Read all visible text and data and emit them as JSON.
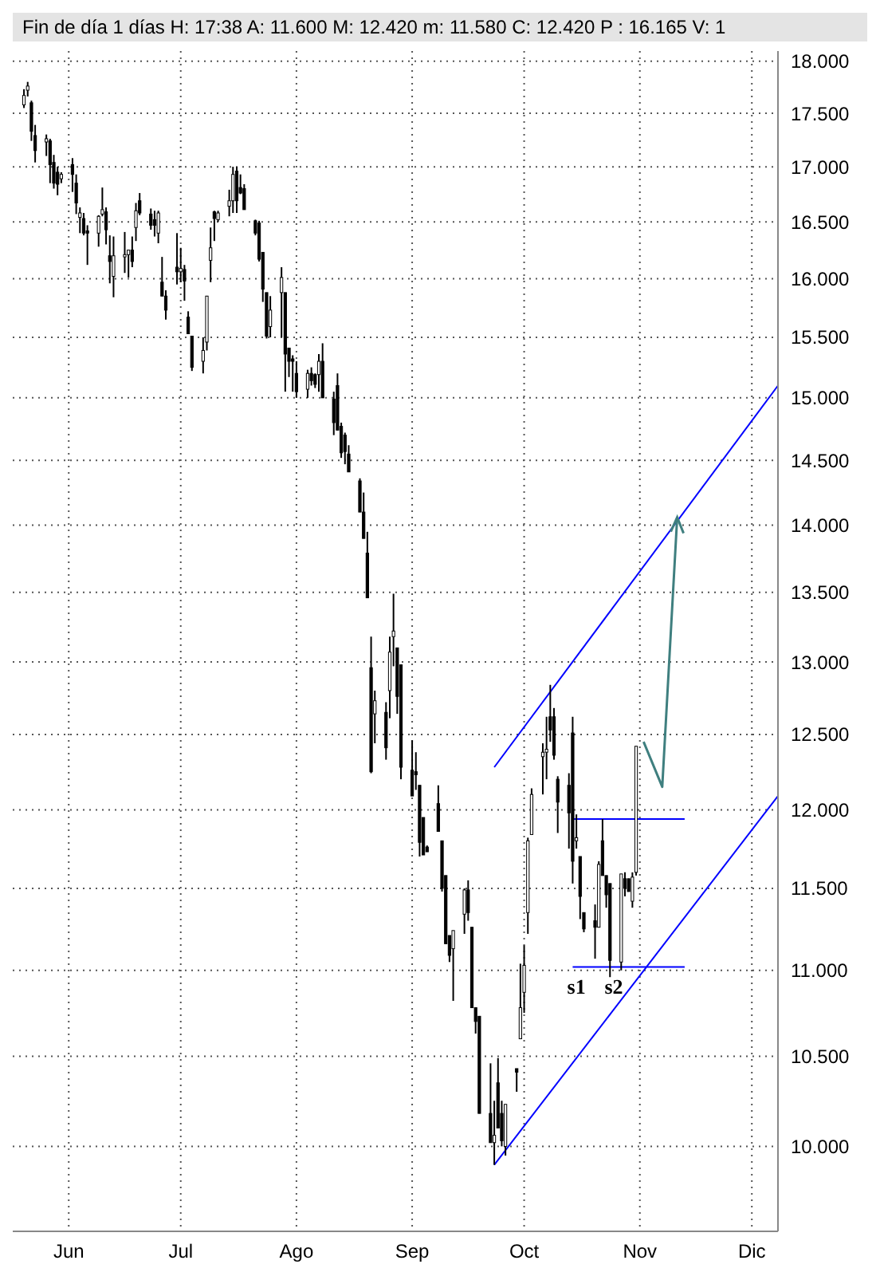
{
  "chart_data": {
    "type": "candlestick",
    "title": "Fin de día 1 días H: 17:38 A: 11.600 M: 12.420 m: 11.580 C: 12.420 P : 16.165 V: 1",
    "log": true,
    "grid": true,
    "xlim": [
      "--05-17",
      "--12-08"
    ],
    "xticks": [
      {
        "value": "--06-01",
        "label": "Jun"
      },
      {
        "value": "--07-01",
        "label": "Jul"
      },
      {
        "value": "--08-01",
        "label": "Ago"
      },
      {
        "value": "--09-01",
        "label": "Sep"
      },
      {
        "value": "--10-01",
        "label": "Oct"
      },
      {
        "value": "--11-01",
        "label": "Nov"
      },
      {
        "value": "--12-01",
        "label": "Dic"
      }
    ],
    "ylim": [
      9.55,
      18.1
    ],
    "yticks": [
      {
        "value": 10,
        "label": "10.000"
      },
      {
        "value": 10.5,
        "label": "10.500"
      },
      {
        "value": 11,
        "label": "11.000"
      },
      {
        "value": 11.5,
        "label": "11.500"
      },
      {
        "value": 12,
        "label": "12.000"
      },
      {
        "value": 12.5,
        "label": "12.500"
      },
      {
        "value": 13,
        "label": "13.000"
      },
      {
        "value": 13.5,
        "label": "13.500"
      },
      {
        "value": 14,
        "label": "14.000"
      },
      {
        "value": 14.5,
        "label": "14.500"
      },
      {
        "value": 15,
        "label": "15.000"
      },
      {
        "value": 15.5,
        "label": "15.500"
      },
      {
        "value": 16,
        "label": "16.000"
      },
      {
        "value": 16.5,
        "label": "16.500"
      },
      {
        "value": 17,
        "label": "17.000"
      },
      {
        "value": 17.5,
        "label": "17.500"
      },
      {
        "value": 18,
        "label": "18.000"
      }
    ],
    "x": [
      "--05-20",
      "--05-21",
      "--05-22",
      "--05-23",
      "--05-26",
      "--05-27",
      "--05-28",
      "--05-29",
      "--05-30",
      "--06-02",
      "--06-03",
      "--06-04",
      "--06-05",
      "--06-06",
      "--06-09",
      "--06-10",
      "--06-11",
      "--06-12",
      "--06-13",
      "--06-16",
      "--06-17",
      "--06-18",
      "--06-19",
      "--06-20",
      "--06-23",
      "--06-24",
      "--06-25",
      "--06-26",
      "--06-27",
      "--06-30",
      "--07-01",
      "--07-02",
      "--07-03",
      "--07-04",
      "--07-07",
      "--07-08",
      "--07-09",
      "--07-10",
      "--07-11",
      "--07-14",
      "--07-15",
      "--07-16",
      "--07-17",
      "--07-18",
      "--07-21",
      "--07-22",
      "--07-23",
      "--07-24",
      "--07-25",
      "--07-28",
      "--07-29",
      "--07-30",
      "--07-31",
      "--08-01",
      "--08-04",
      "--08-05",
      "--08-06",
      "--08-07",
      "--08-08",
      "--08-11",
      "--08-12",
      "--08-13",
      "--08-14",
      "--08-15",
      "--08-18",
      "--08-19",
      "--08-20",
      "--08-21",
      "--08-22",
      "--08-25",
      "--08-26",
      "--08-27",
      "--08-28",
      "--08-29",
      "--09-01",
      "--09-02",
      "--09-03",
      "--09-04",
      "--09-05",
      "--09-08",
      "--09-09",
      "--09-10",
      "--09-11",
      "--09-12",
      "--09-15",
      "--09-16",
      "--09-17",
      "--09-18",
      "--09-19",
      "--09-22",
      "--09-23",
      "--09-24",
      "--09-25",
      "--09-26",
      "--09-29",
      "--09-30",
      "--10-01",
      "--10-02",
      "--10-03",
      "--10-06",
      "--10-07",
      "--10-08",
      "--10-09",
      "--10-10",
      "--10-13",
      "--10-14",
      "--10-15",
      "--10-16",
      "--10-17",
      "--10-20",
      "--10-21",
      "--10-22",
      "--10-23",
      "--10-24",
      "--10-27",
      "--10-28",
      "--10-29",
      "--10-30",
      "--10-31"
    ],
    "ohlc": [
      [
        17.58,
        17.73,
        17.55,
        17.67
      ],
      [
        17.72,
        17.8,
        17.66,
        17.76
      ],
      [
        17.6,
        17.62,
        17.24,
        17.33
      ],
      [
        17.29,
        17.39,
        17.04,
        17.15
      ],
      [
        17.23,
        17.3,
        17.1,
        17.26
      ],
      [
        17.24,
        17.26,
        16.85,
        17.02
      ],
      [
        17.04,
        17.11,
        16.8,
        16.85
      ],
      [
        16.95,
        17.0,
        16.74,
        16.84
      ],
      [
        16.89,
        16.95,
        16.85,
        16.93
      ],
      [
        17.02,
        17.08,
        16.77,
        16.93
      ],
      [
        16.85,
        16.93,
        16.57,
        16.67
      ],
      [
        16.54,
        16.63,
        16.4,
        16.58
      ],
      [
        16.53,
        16.58,
        16.38,
        16.4
      ],
      [
        16.42,
        16.47,
        16.12,
        16.4
      ],
      [
        16.4,
        16.56,
        16.28,
        16.55
      ],
      [
        16.57,
        16.81,
        16.55,
        16.61
      ],
      [
        16.59,
        16.63,
        16.3,
        16.43
      ],
      [
        16.2,
        16.38,
        15.96,
        16.15
      ],
      [
        16.02,
        16.37,
        15.84,
        16.2
      ],
      [
        16.19,
        16.41,
        16.05,
        16.21
      ],
      [
        16.21,
        16.25,
        16.01,
        16.25
      ],
      [
        16.25,
        16.37,
        16.1,
        16.15
      ],
      [
        16.45,
        16.67,
        16.33,
        16.6
      ],
      [
        16.69,
        16.76,
        16.56,
        16.58
      ],
      [
        16.57,
        16.62,
        16.43,
        16.47
      ],
      [
        16.52,
        16.6,
        16.37,
        16.47
      ],
      [
        16.4,
        16.6,
        16.31,
        16.58
      ],
      [
        15.97,
        16.19,
        15.85,
        15.85
      ],
      [
        15.85,
        15.9,
        15.65,
        15.73
      ],
      [
        16.1,
        16.4,
        15.95,
        16.06
      ],
      [
        16.06,
        16.27,
        15.97,
        16.09
      ],
      [
        16.08,
        16.12,
        15.81,
        15.98
      ],
      [
        15.67,
        15.72,
        15.53,
        15.53
      ],
      [
        15.51,
        15.51,
        15.22,
        15.25
      ],
      [
        15.3,
        15.5,
        15.2,
        15.39
      ],
      [
        15.46,
        15.85,
        15.39,
        15.85
      ],
      [
        16.16,
        16.45,
        15.97,
        16.27
      ],
      [
        16.59,
        16.6,
        16.33,
        16.53
      ],
      [
        16.52,
        16.6,
        16.5,
        16.58
      ],
      [
        16.64,
        16.79,
        16.55,
        16.69
      ],
      [
        16.69,
        17.0,
        16.58,
        16.93
      ],
      [
        16.96,
        17.0,
        16.58,
        16.69
      ],
      [
        16.81,
        16.93,
        16.75,
        16.76
      ],
      [
        16.8,
        16.84,
        16.61,
        16.61
      ],
      [
        16.51,
        16.52,
        16.38,
        16.4
      ],
      [
        16.49,
        16.51,
        16.15,
        16.17
      ],
      [
        16.23,
        16.23,
        15.8,
        15.91
      ],
      [
        15.88,
        15.88,
        15.49,
        15.51
      ],
      [
        15.59,
        15.85,
        15.5,
        15.73
      ],
      [
        15.88,
        16.1,
        15.5,
        16.01
      ],
      [
        15.88,
        15.88,
        15.05,
        15.36
      ],
      [
        15.41,
        15.41,
        15.17,
        15.3
      ],
      [
        15.32,
        15.35,
        15.05,
        15.3
      ],
      [
        15.2,
        15.3,
        15.0,
        15.05
      ],
      [
        15.07,
        15.23,
        15.0,
        15.2
      ],
      [
        15.2,
        15.25,
        15.1,
        15.14
      ],
      [
        15.19,
        15.2,
        15.08,
        15.11
      ],
      [
        15.19,
        15.36,
        15.05,
        15.3
      ],
      [
        15.3,
        15.45,
        15.0,
        15.0
      ],
      [
        14.99,
        15.05,
        14.7,
        14.8
      ],
      [
        15.1,
        15.2,
        14.74,
        14.74
      ],
      [
        14.77,
        14.8,
        14.52,
        14.56
      ],
      [
        14.7,
        14.72,
        14.47,
        14.57
      ],
      [
        14.55,
        14.62,
        14.41,
        14.41
      ],
      [
        14.34,
        14.36,
        14.1,
        14.1
      ],
      [
        14.1,
        14.25,
        13.9,
        13.9
      ],
      [
        13.79,
        13.95,
        13.46,
        13.46
      ],
      [
        12.96,
        13.18,
        12.24,
        12.25
      ],
      [
        12.64,
        12.8,
        12.44,
        12.73
      ],
      [
        12.65,
        12.72,
        12.33,
        12.41
      ],
      [
        12.8,
        13.18,
        12.61,
        13.07
      ],
      [
        13.18,
        13.49,
        12.97,
        13.22
      ],
      [
        13.1,
        13.1,
        12.64,
        12.76
      ],
      [
        12.98,
        12.98,
        12.2,
        12.28
      ],
      [
        12.26,
        12.46,
        12.09,
        12.09
      ],
      [
        12.25,
        12.38,
        12.13,
        12.23
      ],
      [
        12.16,
        12.16,
        11.7,
        11.79
      ],
      [
        11.95,
        11.95,
        11.71,
        11.71
      ],
      [
        11.76,
        11.77,
        11.73,
        11.73
      ],
      [
        12.04,
        12.16,
        11.86,
        11.86
      ],
      [
        11.8,
        11.8,
        11.48,
        11.5
      ],
      [
        11.58,
        11.58,
        11.16,
        11.16
      ],
      [
        11.21,
        11.21,
        11.05,
        11.09
      ],
      [
        11.13,
        11.24,
        10.82,
        11.24
      ],
      [
        11.34,
        11.5,
        11.22,
        11.49
      ],
      [
        11.49,
        11.55,
        11.3,
        11.35
      ],
      [
        11.26,
        11.26,
        10.78,
        10.78
      ],
      [
        10.78,
        10.78,
        10.63,
        10.7
      ],
      [
        10.73,
        10.73,
        10.18,
        10.18
      ],
      [
        10.18,
        10.46,
        10.02,
        10.02
      ],
      [
        10.02,
        10.25,
        9.9,
        10.06
      ],
      [
        10.35,
        10.49,
        10.1,
        10.1
      ],
      [
        10.18,
        10.25,
        10.0,
        10.03
      ],
      [
        10.0,
        10.23,
        9.95,
        10.23
      ],
      [
        10.43,
        10.43,
        10.3,
        10.41
      ],
      [
        10.6,
        11.04,
        10.6,
        10.78
      ],
      [
        10.87,
        11.15,
        10.75,
        11.03
      ],
      [
        11.35,
        11.82,
        11.22,
        11.8
      ],
      [
        11.84,
        12.14,
        11.84,
        12.1
      ],
      [
        12.35,
        12.44,
        12.1,
        12.38
      ],
      [
        12.38,
        12.62,
        12.2,
        12.4
      ],
      [
        12.62,
        12.84,
        12.45,
        12.53
      ],
      [
        12.62,
        12.68,
        12.33,
        12.36
      ],
      [
        12.2,
        12.22,
        11.85,
        12.05
      ],
      [
        12.16,
        12.24,
        11.75,
        11.98
      ],
      [
        12.51,
        12.62,
        11.53,
        11.67
      ],
      [
        11.8,
        11.97,
        11.75,
        11.82
      ],
      [
        11.7,
        11.7,
        11.31,
        11.45
      ],
      [
        11.35,
        11.35,
        11.23,
        11.25
      ],
      [
        11.3,
        11.4,
        11.07,
        11.26
      ],
      [
        11.26,
        11.67,
        11.26,
        11.65
      ],
      [
        11.8,
        11.94,
        11.58,
        11.58
      ],
      [
        11.58,
        11.58,
        11.38,
        11.46
      ],
      [
        11.53,
        11.53,
        10.96,
        11.06
      ],
      [
        11.05,
        11.59,
        11.0,
        11.59
      ],
      [
        11.56,
        11.6,
        11.45,
        11.5
      ],
      [
        11.56,
        11.56,
        11.48,
        11.48
      ],
      [
        11.42,
        11.6,
        11.38,
        11.57
      ],
      [
        11.6,
        12.42,
        11.58,
        12.42
      ]
    ],
    "series": [
      {
        "type": "line",
        "color": "#0000ff",
        "x": [
          "--09-23",
          "--12-08"
        ],
        "values": [
          12.28,
          15.1
        ]
      },
      {
        "type": "line",
        "color": "#0000ff",
        "x": [
          "--09-23",
          "--12-08"
        ],
        "values": [
          9.9,
          12.09
        ]
      },
      {
        "type": "line",
        "color": "#0000ff",
        "x": [
          "--10-14",
          "--11-13"
        ],
        "values": [
          11.94,
          11.94
        ]
      },
      {
        "type": "line",
        "color": "#0000ff",
        "x": [
          "--10-14",
          "--11-13"
        ],
        "values": [
          11.02,
          11.02
        ]
      }
    ],
    "annotations": [
      "s1",
      "s2"
    ]
  }
}
